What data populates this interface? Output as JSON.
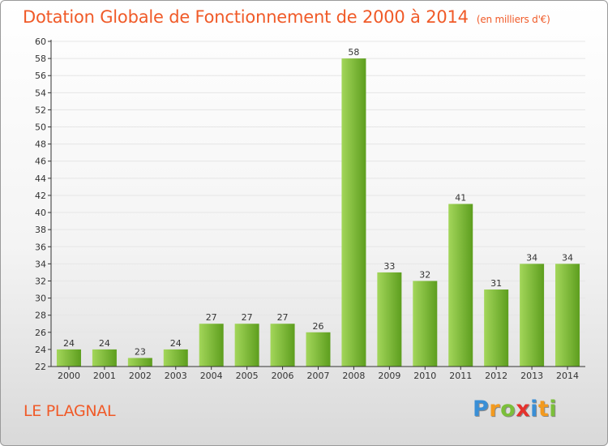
{
  "header": {
    "title": "Dotation Globale de Fonctionnement de 2000 à 2014",
    "subtitle": "(en milliers d'€)"
  },
  "commune": "LE PLAGNAL",
  "logo": {
    "text": "Proxiti",
    "letters": [
      {
        "ch": "P",
        "color": "#3a8fd6"
      },
      {
        "ch": "r",
        "color": "#f39a1e"
      },
      {
        "ch": "o",
        "color": "#7bbf3a"
      },
      {
        "ch": "x",
        "color": "#e5322d"
      },
      {
        "ch": "i",
        "color": "#3a8fd6"
      },
      {
        "ch": "t",
        "color": "#f39a1e"
      },
      {
        "ch": "i",
        "color": "#7bbf3a"
      }
    ]
  },
  "colors": {
    "title": "#f05a28",
    "bar_light": "#a3d65a",
    "bar_dark": "#5d9e1e",
    "axis": "#333333",
    "grid": "#e6e6e6"
  },
  "chart_data": {
    "type": "bar",
    "title": "Dotation Globale de Fonctionnement de 2000 à 2014",
    "subtitle": "(en milliers d'€)",
    "xlabel": "",
    "ylabel": "",
    "categories": [
      "2000",
      "2001",
      "2002",
      "2003",
      "2004",
      "2005",
      "2006",
      "2007",
      "2008",
      "2009",
      "2010",
      "2011",
      "2012",
      "2013",
      "2014"
    ],
    "values": [
      24,
      24,
      23,
      24,
      27,
      27,
      27,
      26,
      58,
      33,
      32,
      41,
      31,
      34,
      34
    ],
    "ylim": [
      22,
      60
    ],
    "ytick_step": 2,
    "grid": true,
    "legend": "none"
  }
}
